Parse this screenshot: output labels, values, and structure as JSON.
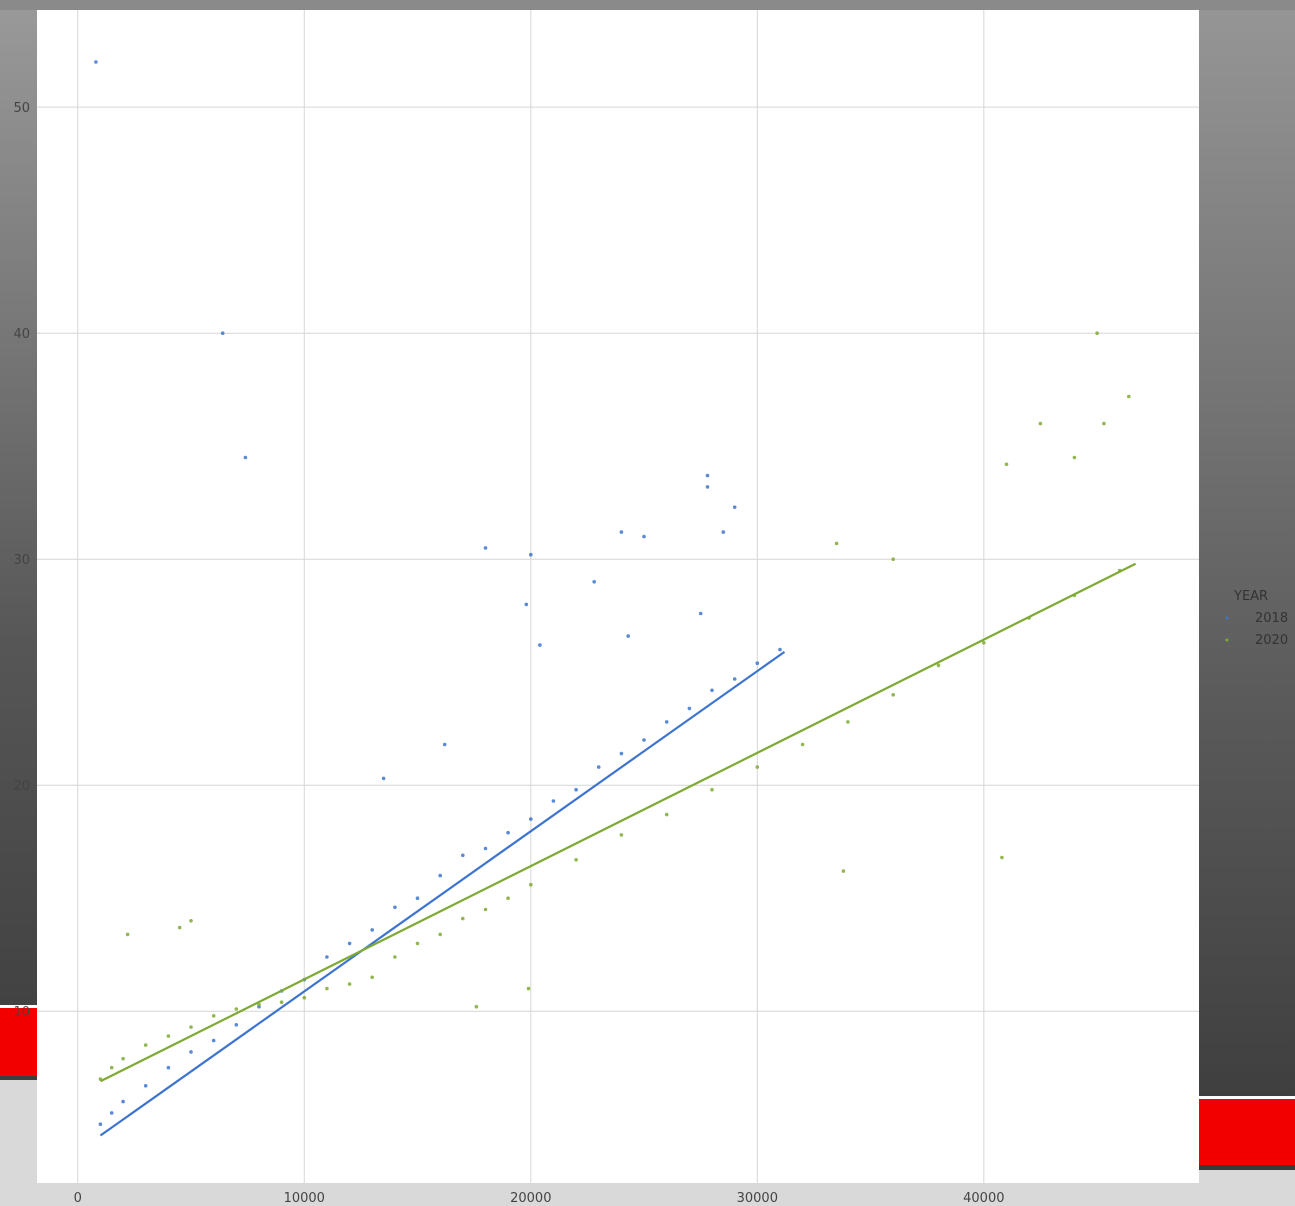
{
  "chart_data": {
    "type": "scatter",
    "title": "",
    "xlabel": "",
    "ylabel": "",
    "xlim": [
      -1800,
      49500
    ],
    "ylim": [
      2.4,
      54.3
    ],
    "x_ticks": [
      0,
      10000,
      20000,
      30000,
      40000
    ],
    "x_tick_labels": [
      "0",
      "10000",
      "20000",
      "30000",
      "40000"
    ],
    "y_ticks": [
      10,
      20,
      30,
      40,
      50
    ],
    "y_tick_labels": [
      "10",
      "20",
      "30",
      "40",
      "50"
    ],
    "grid": true,
    "legend": {
      "title": "YEAR",
      "position": "right",
      "entries": [
        "2018",
        "2020"
      ]
    },
    "series": [
      {
        "name": "2018",
        "color": "#3d74cf",
        "fit_line": {
          "x": [
            1000,
            31200
          ],
          "y": [
            4.5,
            25.9
          ]
        },
        "points_sample": [
          [
            1000,
            5.0
          ],
          [
            1500,
            5.5
          ],
          [
            2000,
            6.0
          ],
          [
            3000,
            6.7
          ],
          [
            4000,
            7.5
          ],
          [
            5000,
            8.2
          ],
          [
            6000,
            8.7
          ],
          [
            7000,
            9.4
          ],
          [
            8000,
            10.2
          ],
          [
            9000,
            10.9
          ],
          [
            10000,
            11.4
          ],
          [
            11000,
            12.4
          ],
          [
            12000,
            13.0
          ],
          [
            13000,
            13.6
          ],
          [
            14000,
            14.6
          ],
          [
            15000,
            15.0
          ],
          [
            16000,
            16.0
          ],
          [
            17000,
            16.9
          ],
          [
            18000,
            17.2
          ],
          [
            19000,
            17.9
          ],
          [
            20000,
            18.5
          ],
          [
            21000,
            19.3
          ],
          [
            22000,
            19.8
          ],
          [
            23000,
            20.8
          ],
          [
            24000,
            21.4
          ],
          [
            25000,
            22.0
          ],
          [
            26000,
            22.8
          ],
          [
            27000,
            23.4
          ],
          [
            28000,
            24.2
          ],
          [
            29000,
            24.7
          ],
          [
            30000,
            25.4
          ],
          [
            31000,
            26.0
          ],
          [
            800,
            52.0
          ],
          [
            6400,
            40.0
          ],
          [
            7400,
            34.5
          ],
          [
            18000,
            30.5
          ],
          [
            20000,
            30.2
          ],
          [
            19800,
            28.0
          ],
          [
            24000,
            31.2
          ],
          [
            25000,
            31.0
          ],
          [
            27800,
            33.7
          ],
          [
            27800,
            33.2
          ],
          [
            29000,
            32.3
          ],
          [
            28500,
            31.2
          ],
          [
            22800,
            29.0
          ],
          [
            24300,
            26.6
          ],
          [
            27500,
            27.6
          ],
          [
            20400,
            26.2
          ],
          [
            13500,
            20.3
          ],
          [
            16200,
            21.8
          ]
        ]
      },
      {
        "name": "2020",
        "color": "#7faa33",
        "fit_line": {
          "x": [
            1000,
            46700
          ],
          "y": [
            6.9,
            29.8
          ]
        },
        "points_sample": [
          [
            1000,
            7.0
          ],
          [
            1500,
            7.5
          ],
          [
            2000,
            7.9
          ],
          [
            3000,
            8.5
          ],
          [
            4000,
            8.9
          ],
          [
            5000,
            9.3
          ],
          [
            6000,
            9.8
          ],
          [
            7000,
            10.1
          ],
          [
            8000,
            10.3
          ],
          [
            9000,
            10.4
          ],
          [
            10000,
            10.6
          ],
          [
            11000,
            11.0
          ],
          [
            12000,
            11.2
          ],
          [
            13000,
            11.5
          ],
          [
            14000,
            12.4
          ],
          [
            15000,
            13.0
          ],
          [
            16000,
            13.4
          ],
          [
            17000,
            14.1
          ],
          [
            18000,
            14.5
          ],
          [
            19000,
            15.0
          ],
          [
            20000,
            15.6
          ],
          [
            22000,
            16.7
          ],
          [
            24000,
            17.8
          ],
          [
            26000,
            18.7
          ],
          [
            28000,
            19.8
          ],
          [
            30000,
            20.8
          ],
          [
            32000,
            21.8
          ],
          [
            34000,
            22.8
          ],
          [
            36000,
            24.0
          ],
          [
            38000,
            25.3
          ],
          [
            40000,
            26.3
          ],
          [
            42000,
            27.4
          ],
          [
            44000,
            28.4
          ],
          [
            46000,
            29.5
          ],
          [
            45300,
            36.0
          ],
          [
            46400,
            37.2
          ],
          [
            42500,
            36.0
          ],
          [
            41000,
            34.2
          ],
          [
            44000,
            34.5
          ],
          [
            36000,
            30.0
          ],
          [
            33500,
            30.7
          ],
          [
            45000,
            40.0
          ],
          [
            33800,
            16.2
          ],
          [
            40800,
            16.8
          ],
          [
            2200,
            13.4
          ],
          [
            4500,
            13.7
          ],
          [
            19900,
            11.0
          ],
          [
            17600,
            10.2
          ],
          [
            5000,
            14.0
          ]
        ]
      }
    ]
  }
}
